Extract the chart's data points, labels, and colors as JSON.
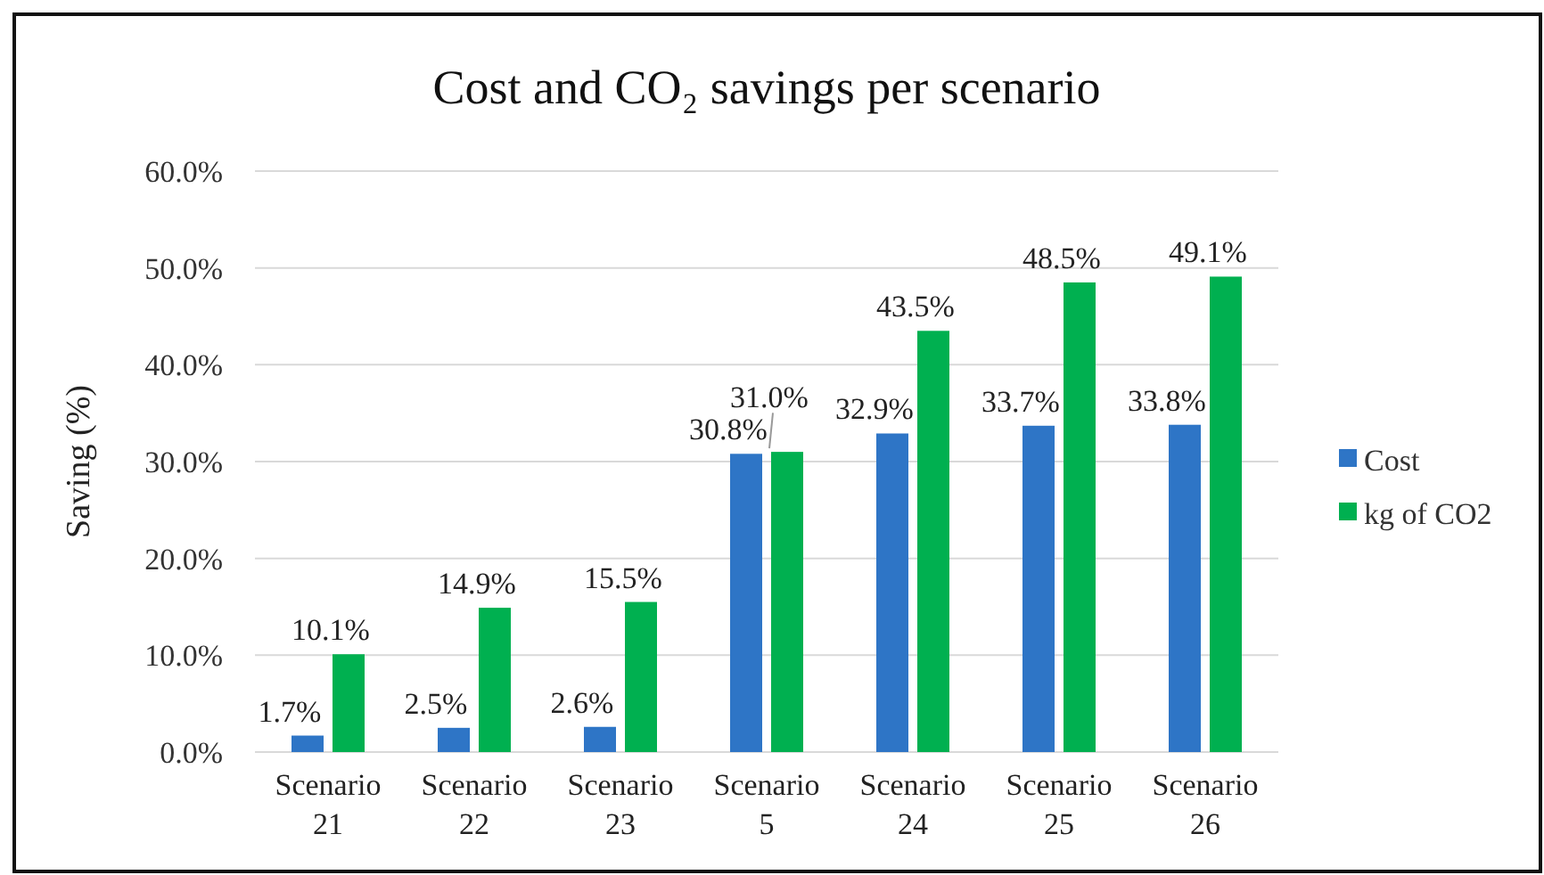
{
  "chart_data": {
    "type": "bar",
    "title": "Cost and CO₂ savings per scenario",
    "ylabel": "Saving (%)",
    "categories": [
      "Scenario 21",
      "Scenario 22",
      "Scenario 23",
      "Scenario 5",
      "Scenario 24",
      "Scenario 25",
      "Scenario 26"
    ],
    "series": [
      {
        "name": "Cost",
        "color": "#2e75c6",
        "values": [
          1.7,
          2.5,
          2.6,
          30.8,
          32.9,
          33.7,
          33.8
        ],
        "value_labels": [
          "1.7%",
          "2.5%",
          "2.6%",
          "30.8%",
          "32.9%",
          "33.7%",
          "33.8%"
        ]
      },
      {
        "name": "kg of CO2",
        "color": "#00b050",
        "values": [
          10.1,
          14.9,
          15.5,
          31.0,
          43.5,
          48.5,
          49.1
        ],
        "value_labels": [
          "10.1%",
          "14.9%",
          "15.5%",
          "31.0%",
          "43.5%",
          "48.5%",
          "49.1%"
        ]
      }
    ],
    "ylim": [
      0,
      60
    ],
    "yticks": [
      {
        "value": 0,
        "label": "0.0%"
      },
      {
        "value": 10,
        "label": "10.0%"
      },
      {
        "value": 20,
        "label": "20.0%"
      },
      {
        "value": 30,
        "label": "30.0%"
      },
      {
        "value": 40,
        "label": "40.0%"
      },
      {
        "value": 50,
        "label": "50.0%"
      },
      {
        "value": 60,
        "label": "60.0%"
      }
    ],
    "grid": "y",
    "legend": "right"
  }
}
